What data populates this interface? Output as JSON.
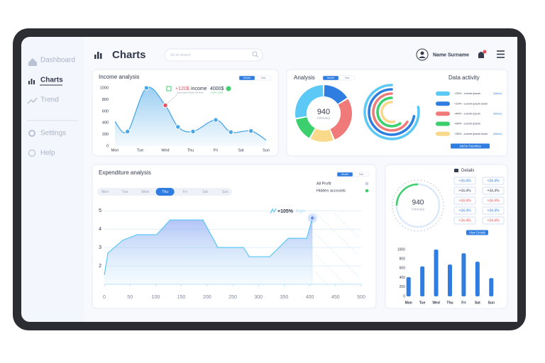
{
  "sidebar": {
    "items": [
      "Dashboard",
      "Charts",
      "Trend",
      "Settings",
      "Help"
    ],
    "active": 1
  },
  "header": {
    "title": "Charts",
    "search_placeholder": "Go to search",
    "user": "Name Surname"
  },
  "activity": {
    "title": "Data activity",
    "rows": [
      {
        "text": "+20% - Lorem ipsum",
        "more": "(More)",
        "color": "#5bc8f5"
      },
      {
        "text": "+10% - Lorem ipsum dolor",
        "color": "#2f7de1"
      },
      {
        "text": "+40% - Lorem ipsum",
        "more": "(More)",
        "color": "#f07a7a"
      },
      {
        "text": "+60% - Lorem ipsum",
        "color": "#3ccf6e"
      },
      {
        "text": "+30% - Lorem ipsum dolor",
        "more": "(More)",
        "color": "#f9d98a"
      }
    ],
    "button": "Add to Favorites"
  },
  "details": {
    "title": "Details",
    "gauge_value": "940",
    "gauge_label": "February",
    "badges": [
      {
        "text": "+34.4%",
        "color": "#2f7de1"
      },
      {
        "text": "+34.4%",
        "color": "#2f7de1"
      },
      {
        "text": "+34.4%",
        "color": "#333a4d"
      },
      {
        "text": "+34.4%",
        "color": "#333a4d"
      },
      {
        "text": "+34.4%",
        "color": "#e8505b"
      },
      {
        "text": "+34.4%",
        "color": "#e8505b"
      },
      {
        "text": "+34.4%",
        "color": "#2f7de1"
      },
      {
        "text": "+34.4%",
        "color": "#2f7de1"
      },
      {
        "text": "+34.4%",
        "color": "#e8505b"
      },
      {
        "text": "+34.4%",
        "color": "#e8505b"
      }
    ],
    "button": "View Details"
  },
  "chart_data": [
    {
      "type": "smooth",
      "title": "Income analysis",
      "toggle": [
        "Month",
        "Year"
      ],
      "x": [
        0,
        0.5,
        1.25,
        2,
        2.5,
        3.1,
        4,
        4.6,
        5.4,
        6
      ],
      "values": [
        420,
        250,
        1000,
        700,
        330,
        250,
        450,
        240,
        260,
        100
      ],
      "color": "#4aa8e8",
      "highlight_index": 3,
      "highlight_color": "#e8505b",
      "xlim": [
        0,
        6
      ],
      "xticks": [
        {
          "value": 0,
          "label": "Mon"
        },
        {
          "value": 1,
          "label": "Tue"
        },
        {
          "value": 2,
          "label": "Wed"
        },
        {
          "value": 3,
          "label": "Thu"
        },
        {
          "value": 4,
          "label": "Fri"
        },
        {
          "value": 5,
          "label": "Sat"
        },
        {
          "value": 6,
          "label": "Sun"
        }
      ],
      "ylim": [
        0,
        1000
      ],
      "yticks": [
        0,
        200,
        400,
        600,
        800,
        1000
      ],
      "annotation": {
        "change": "+120$",
        "label": "income",
        "total": "4000$",
        "note": "Lorem ipsum Dolor Sit Amet",
        "small": "+20% +120$"
      }
    },
    {
      "type": "area",
      "title": "Expenditure analysis",
      "toggle": [
        "Month",
        "Year"
      ],
      "tabs": [
        "Mon",
        "Tue",
        "Wed",
        "Thu",
        "Fri",
        "Sat",
        "Sun"
      ],
      "selected_tab": 3,
      "legend_items": [
        "All Profit",
        "Hidden accounts"
      ],
      "x": [
        0,
        7,
        36,
        64,
        102,
        128,
        192,
        221,
        271,
        282,
        322,
        358,
        394,
        405
      ],
      "values": [
        1.5,
        2.7,
        3.4,
        3.7,
        3.7,
        4.5,
        4.5,
        3.0,
        3.0,
        2.5,
        2.5,
        3.5,
        3.5,
        4.6
      ],
      "color": "#5bc8f5",
      "xlim": [
        0,
        500
      ],
      "xticks": [
        0,
        50,
        100,
        150,
        200,
        250,
        300,
        350,
        400,
        450,
        500
      ],
      "ylim": [
        1,
        5.2
      ],
      "yticks": [
        2,
        3,
        4,
        5
      ],
      "grid": true,
      "annotation": {
        "change": "+105%",
        "label": "Right"
      }
    },
    {
      "type": "donut",
      "title": "Analysis",
      "toggle": [
        "Month",
        "Year"
      ],
      "values": [
        16,
        28,
        14,
        14,
        28
      ],
      "colors": [
        "#2f7de1",
        "#f07a7a",
        "#f9d98a",
        "#3ccf6e",
        "#5bc8f5"
      ],
      "center_value": "940",
      "center_label": "February"
    },
    {
      "type": "radial",
      "values": [
        78,
        72,
        66,
        60,
        54
      ],
      "colors": [
        "#5bc8f5",
        "#2f7de1",
        "#f07a7a",
        "#3ccf6e",
        "#f9d98a"
      ],
      "ylim": [
        0,
        100
      ]
    },
    {
      "type": "bar",
      "categories": [
        "Mon",
        "Tue",
        "Wed",
        "Thu",
        "Fri",
        "Sat",
        "Sun"
      ],
      "values": [
        410,
        640,
        1000,
        680,
        920,
        740,
        390
      ],
      "color": "#2f7de1",
      "ylim": [
        0,
        1000
      ],
      "yticks": [
        0,
        200,
        400,
        600,
        800,
        1000
      ]
    }
  ]
}
